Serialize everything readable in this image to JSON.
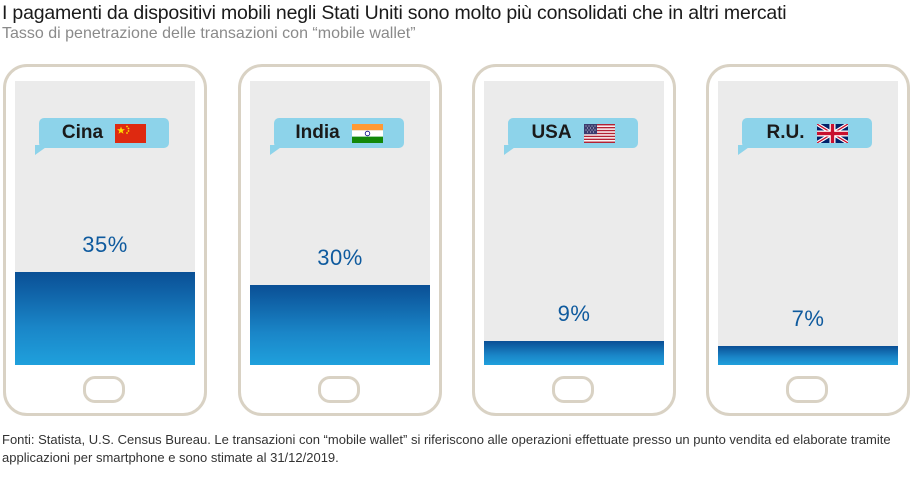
{
  "title": "I pagamenti da dispositivi mobili negli Stati Uniti sono molto più consolidati che in altri mercati",
  "subtitle": "Tasso di penetrazione delle transazioni con “mobile wallet”",
  "chart_data": {
    "type": "bar",
    "categories": [
      "Cina",
      "India",
      "USA",
      "R.U."
    ],
    "values": [
      35,
      30,
      9,
      7
    ],
    "value_labels": [
      "35%",
      "30%",
      "9%",
      "7%"
    ],
    "ylim": [
      0,
      100
    ],
    "fill_color": "#1a86c8",
    "fill_color_dark": "#0a4f95",
    "icons": [
      "china-flag-icon",
      "india-flag-icon",
      "usa-flag-icon",
      "uk-flag-icon"
    ]
  },
  "footnote": "Fonti: Statista, U.S. Census Bureau. Le transazioni con “mobile wallet” si riferiscono alle operazioni effettuate presso un punto vendita ed elaborate tramite applicazioni per smartphone e sono stimate al 31/12/2019."
}
